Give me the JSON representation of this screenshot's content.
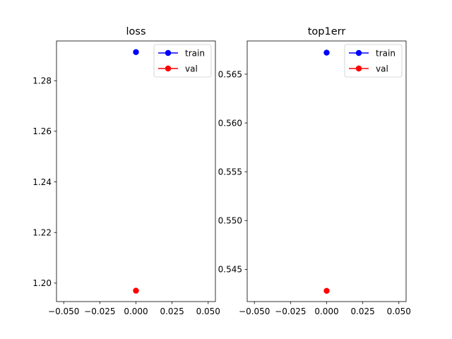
{
  "chart_data": [
    {
      "type": "scatter",
      "title": "loss",
      "xlabel": "",
      "ylabel": "",
      "xlim": [
        -0.055,
        0.055
      ],
      "ylim": [
        1.1927,
        1.2957
      ],
      "xticks": [
        -0.05,
        -0.025,
        0.0,
        0.025,
        0.05
      ],
      "xtick_labels": [
        "−0.050",
        "−0.025",
        "0.000",
        "0.025",
        "0.050"
      ],
      "yticks": [
        1.2,
        1.22,
        1.24,
        1.26,
        1.28
      ],
      "ytick_labels": [
        "1.20",
        "1.22",
        "1.24",
        "1.26",
        "1.28"
      ],
      "grid": false,
      "legend": "upper-right",
      "series": [
        {
          "name": "train",
          "color": "#0000ff",
          "marker": "circle",
          "line": true,
          "x": [
            0
          ],
          "y": [
            1.2913
          ]
        },
        {
          "name": "val",
          "color": "#ff0000",
          "marker": "circle",
          "line": true,
          "x": [
            0
          ],
          "y": [
            1.197
          ]
        }
      ]
    },
    {
      "type": "scatter",
      "title": "top1err",
      "xlabel": "",
      "ylabel": "",
      "xlim": [
        -0.055,
        0.055
      ],
      "ylim": [
        0.5417,
        0.5684
      ],
      "xticks": [
        -0.05,
        -0.025,
        0.0,
        0.025,
        0.05
      ],
      "xtick_labels": [
        "−0.050",
        "−0.025",
        "0.000",
        "0.025",
        "0.050"
      ],
      "yticks": [
        0.545,
        0.55,
        0.555,
        0.56,
        0.565
      ],
      "ytick_labels": [
        "0.545",
        "0.550",
        "0.555",
        "0.560",
        "0.565"
      ],
      "grid": false,
      "legend": "upper-right",
      "series": [
        {
          "name": "train",
          "color": "#0000ff",
          "marker": "circle",
          "line": true,
          "x": [
            0
          ],
          "y": [
            0.5672
          ]
        },
        {
          "name": "val",
          "color": "#ff0000",
          "marker": "circle",
          "line": true,
          "x": [
            0
          ],
          "y": [
            0.5428
          ]
        }
      ]
    }
  ]
}
